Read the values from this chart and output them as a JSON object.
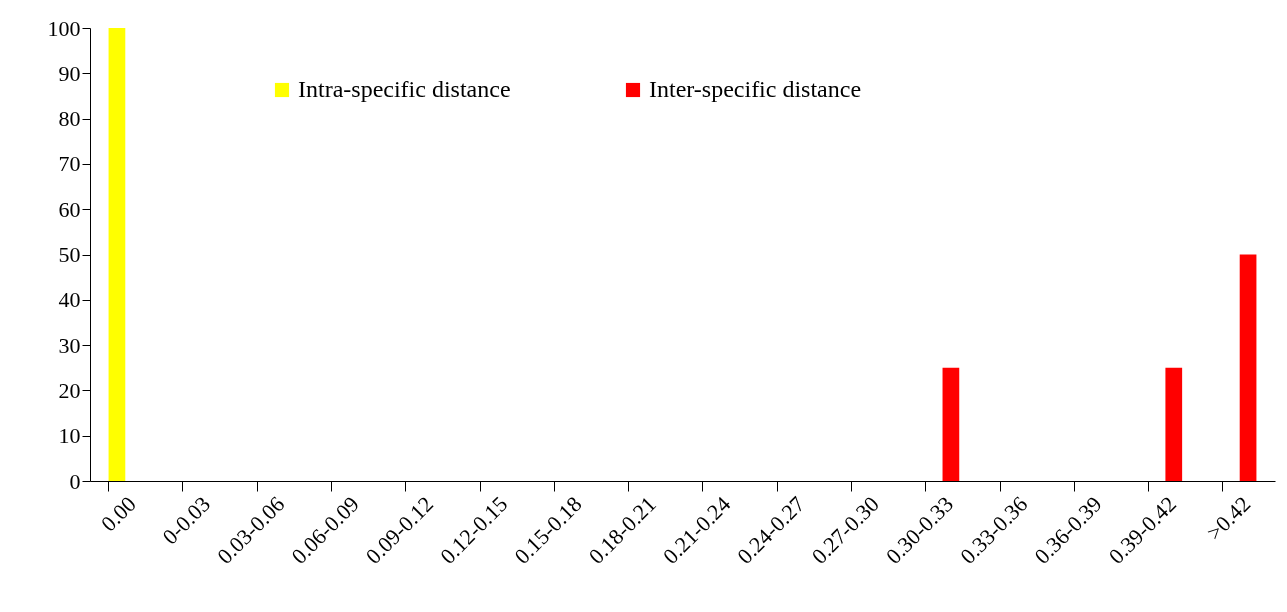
{
  "chart_data": {
    "type": "bar",
    "categories": [
      "0.00",
      "0-0.03",
      "0.03-0.06",
      "0.06-0.09",
      "0.09-0.12",
      "0.12-0.15",
      "0.15-0.18",
      "0.18-0.21",
      "0.21-0.24",
      "0.24-0.27",
      "0.27-0.30",
      "0.30-0.33",
      "0.33-0.36",
      "0.36-0.39",
      "0.39-0.42",
      ">0.42"
    ],
    "series": [
      {
        "name": "Intra-specific distance",
        "color": "#ffff00",
        "values": [
          100,
          0,
          0,
          0,
          0,
          0,
          0,
          0,
          0,
          0,
          0,
          0,
          0,
          0,
          0,
          0
        ]
      },
      {
        "name": "Inter-specific distance",
        "color": "#ff0000",
        "values": [
          0,
          0,
          0,
          0,
          0,
          0,
          0,
          0,
          0,
          0,
          0,
          25,
          0,
          0,
          25,
          50
        ]
      }
    ],
    "ylim": [
      0,
      100
    ],
    "yticks": [
      0,
      10,
      20,
      30,
      40,
      50,
      60,
      70,
      80,
      90,
      100
    ],
    "grid": false,
    "legend": "top"
  }
}
